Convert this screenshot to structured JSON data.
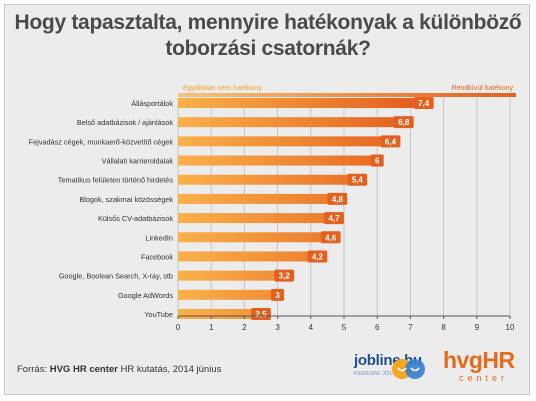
{
  "title": "Hogy tapasztalta, mennyire hatékonyak a különböző toborzási csatornák?",
  "scale": {
    "left_label": "Egyáltalán nem hatékony",
    "right_label": "Rendkívül hatékony"
  },
  "chart_data": {
    "type": "bar",
    "orientation": "horizontal",
    "categories": [
      "Állásportálok",
      "Belső adatbázisok / ajánlások",
      "Fejvadász cégek, munkaerő-közvetítő cégek",
      "Vállalati karrieroldalak",
      "Tematikus felületen történő hirdetés",
      "Blogok, szakmai közösségek",
      "Külsős CV-adatbázisok",
      "LinkedIn",
      "Facebook",
      "Google, Boolean Search, X-ray, stb",
      "Google AdWords",
      "YouTube"
    ],
    "values": [
      7.4,
      6.8,
      6.4,
      6,
      5.4,
      4.8,
      4.7,
      4.6,
      4.2,
      3.2,
      3,
      2.5
    ],
    "value_labels": [
      "7,4",
      "6,8",
      "6,4",
      "6",
      "5,4",
      "4,8",
      "4,7",
      "4,6",
      "4,2",
      "3,2",
      "3",
      "2,5"
    ],
    "xlim": [
      0,
      10
    ],
    "xticks": [
      "0",
      "1",
      "2",
      "3",
      "4",
      "5",
      "6",
      "7",
      "8",
      "9",
      "10"
    ],
    "grid": true,
    "colors": {
      "bar_left": "#f9b14a",
      "bar_right": "#e4601f",
      "label_box": "#e4601f"
    }
  },
  "footer": {
    "source_prefix": "Forrás: ",
    "source_bold": "HVG HR center",
    "source_rest": " HR kutatás, 2014 június",
    "jobline_word": "jobline.hu",
    "jobline_tag": "KERESNI JÓL IS LEHET",
    "hvg_word": "hvgHR",
    "hvg_sub": "center"
  }
}
